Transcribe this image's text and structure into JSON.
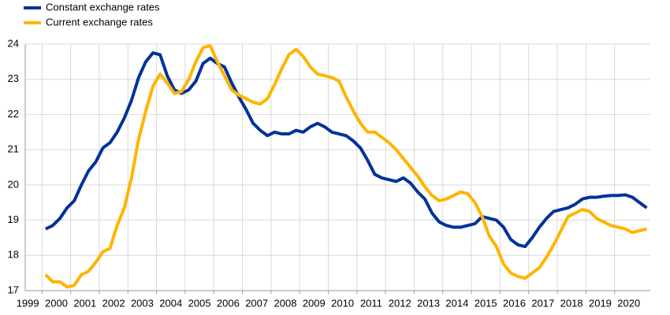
{
  "chart_data": {
    "type": "line",
    "x": [
      2000.125,
      2000.375,
      2000.625,
      2000.875,
      2001.125,
      2001.375,
      2001.625,
      2001.875,
      2002.125,
      2002.375,
      2002.625,
      2002.875,
      2003.125,
      2003.375,
      2003.625,
      2003.875,
      2004.125,
      2004.375,
      2004.625,
      2004.875,
      2005.125,
      2005.375,
      2005.625,
      2005.875,
      2006.125,
      2006.375,
      2006.625,
      2006.875,
      2007.125,
      2007.375,
      2007.625,
      2007.875,
      2008.125,
      2008.375,
      2008.625,
      2008.875,
      2009.125,
      2009.375,
      2009.625,
      2009.875,
      2010.125,
      2010.375,
      2010.625,
      2010.875,
      2011.125,
      2011.375,
      2011.625,
      2011.875,
      2012.125,
      2012.375,
      2012.625,
      2012.875,
      2013.125,
      2013.375,
      2013.625,
      2013.875,
      2014.125,
      2014.375,
      2014.625,
      2014.875,
      2015.125,
      2015.375,
      2015.625,
      2015.875,
      2016.125,
      2016.375,
      2016.625,
      2016.875,
      2017.125,
      2017.375,
      2017.625,
      2017.875,
      2018.125,
      2018.375,
      2018.625,
      2018.875,
      2019.125,
      2019.375,
      2019.625,
      2019.875,
      2020.125,
      2020.375,
      2020.625,
      2020.875,
      2021.125
    ],
    "series": [
      {
        "name": "Constant exchange rates",
        "color": "#003299",
        "values": [
          18.75,
          18.85,
          19.05,
          19.35,
          19.55,
          20.0,
          20.4,
          20.65,
          21.05,
          21.2,
          21.5,
          21.9,
          22.4,
          23.05,
          23.5,
          23.75,
          23.7,
          23.1,
          22.7,
          22.6,
          22.7,
          22.95,
          23.45,
          23.6,
          23.45,
          23.35,
          22.9,
          22.5,
          22.15,
          21.75,
          21.55,
          21.4,
          21.5,
          21.45,
          21.45,
          21.55,
          21.5,
          21.65,
          21.75,
          21.65,
          21.5,
          21.45,
          21.4,
          21.25,
          21.05,
          20.7,
          20.3,
          20.2,
          20.15,
          20.1,
          20.2,
          20.05,
          19.8,
          19.6,
          19.2,
          18.95,
          18.85,
          18.8,
          18.8,
          18.85,
          18.9,
          19.1,
          19.05,
          19.0,
          18.8,
          18.45,
          18.3,
          18.25,
          18.5,
          18.8,
          19.05,
          19.25,
          19.3,
          19.35,
          19.45,
          19.6,
          19.65,
          19.65,
          19.68,
          19.7,
          19.7,
          19.72,
          19.65,
          19.5,
          19.35
        ]
      },
      {
        "name": "Current exchange rates",
        "color": "#ffb400",
        "values": [
          17.45,
          17.25,
          17.25,
          17.1,
          17.15,
          17.45,
          17.55,
          17.8,
          18.1,
          18.2,
          18.85,
          19.35,
          20.2,
          21.3,
          22.1,
          22.8,
          23.15,
          22.9,
          22.6,
          22.65,
          23.0,
          23.5,
          23.9,
          23.95,
          23.5,
          23.1,
          22.7,
          22.55,
          22.45,
          22.35,
          22.3,
          22.45,
          22.85,
          23.3,
          23.7,
          23.85,
          23.65,
          23.35,
          23.15,
          23.1,
          23.05,
          22.95,
          22.5,
          22.1,
          21.75,
          21.5,
          21.5,
          21.35,
          21.2,
          21.0,
          20.75,
          20.5,
          20.25,
          19.95,
          19.7,
          19.55,
          19.6,
          19.7,
          19.8,
          19.75,
          19.5,
          19.1,
          18.55,
          18.25,
          17.75,
          17.5,
          17.4,
          17.35,
          17.5,
          17.65,
          17.95,
          18.3,
          18.7,
          19.1,
          19.2,
          19.3,
          19.25,
          19.05,
          18.95,
          18.85,
          18.8,
          18.75,
          18.65,
          18.7,
          18.75
        ]
      }
    ],
    "xlim": [
      1999,
      2021.25
    ],
    "xticks": [
      1999,
      2000,
      2001,
      2002,
      2003,
      2004,
      2005,
      2006,
      2007,
      2008,
      2009,
      2010,
      2011,
      2012,
      2013,
      2014,
      2015,
      2016,
      2017,
      2018,
      2019,
      2020
    ],
    "ylim": [
      17,
      24
    ],
    "yticks": [
      17,
      18,
      19,
      20,
      21,
      22,
      23,
      24
    ],
    "grid": true,
    "legend": "top-left"
  }
}
